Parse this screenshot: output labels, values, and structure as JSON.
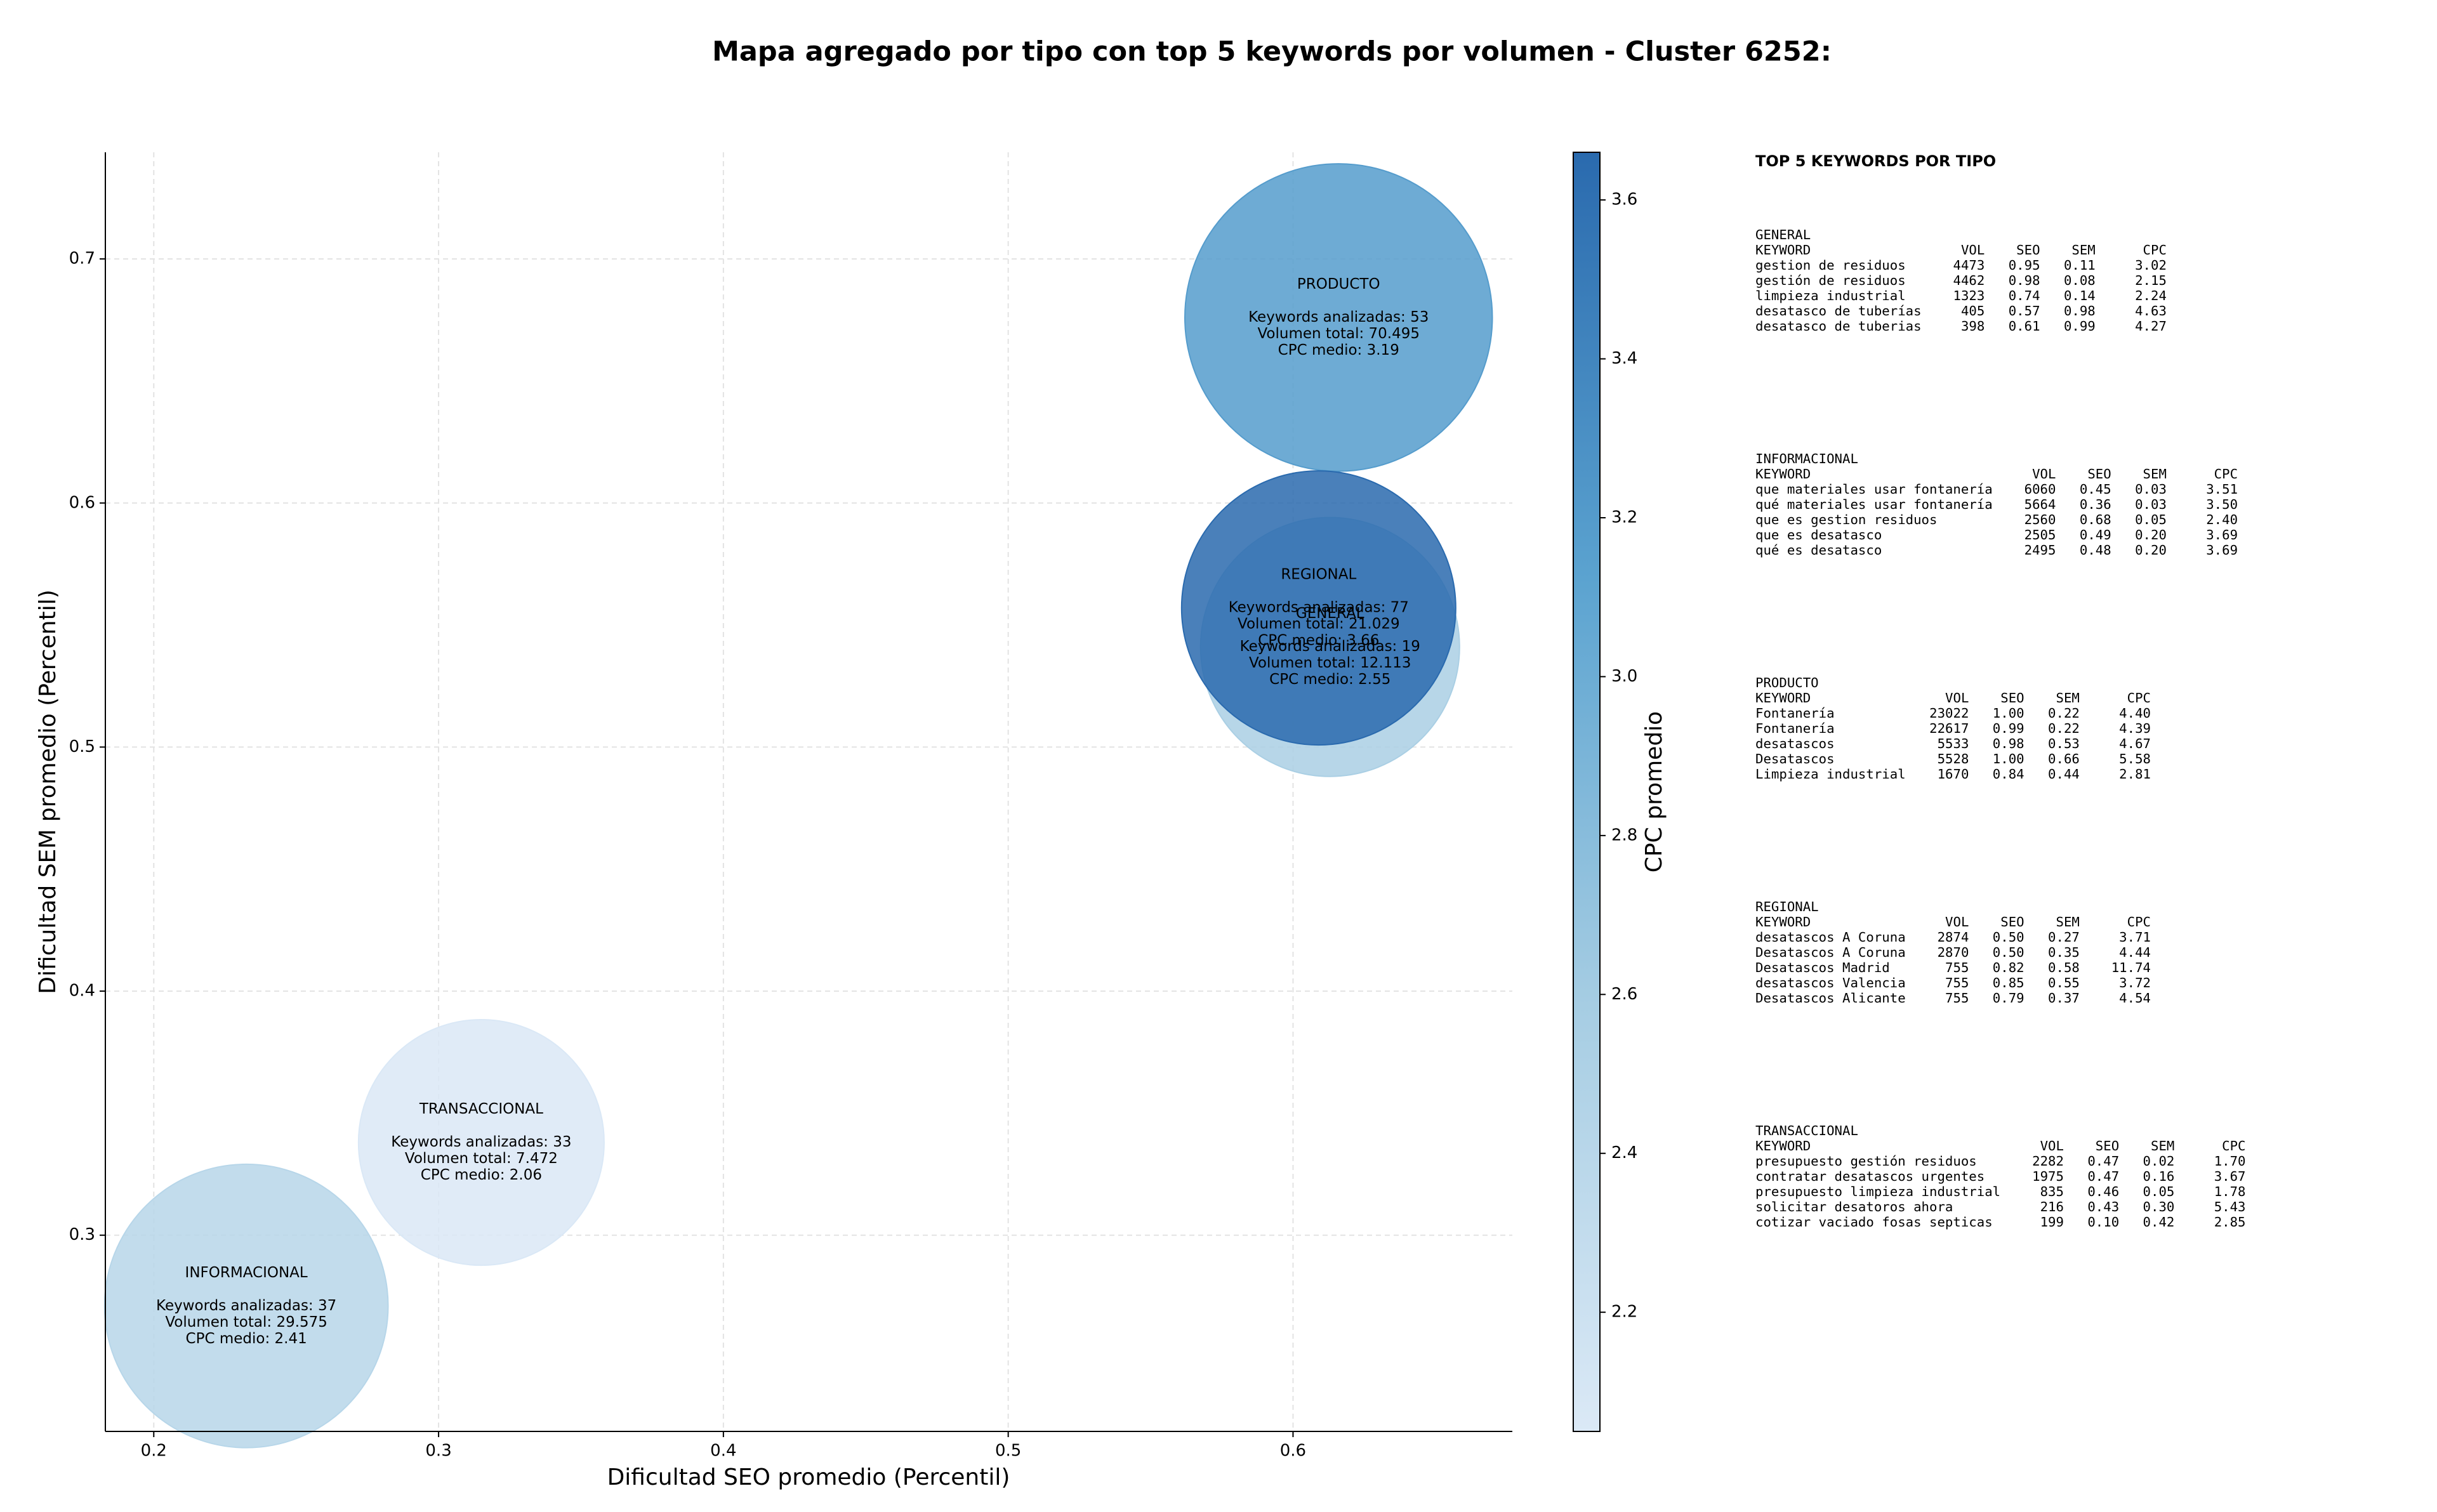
{
  "chart_data": {
    "type": "bubble",
    "title": "Mapa agregado por tipo con top 5 keywords por volumen - Cluster 6252:",
    "x_label": "Dificultad SEO promedio (Percentil)",
    "y_label": "Dificultad SEM promedio (Percentil)",
    "xlim": [
      0.183,
      0.677
    ],
    "ylim": [
      0.2196,
      0.7437
    ],
    "xticks": [
      0.2,
      0.3,
      0.4,
      0.5,
      0.6
    ],
    "yticks": [
      0.3,
      0.4,
      0.5,
      0.6,
      0.7
    ],
    "grid": true,
    "points": [
      {
        "name": "GENERAL",
        "x": 0.613,
        "y": 0.541,
        "volume": 12113,
        "cpc": 2.55,
        "annotation": [
          "Keywords analizadas: 19",
          "Volumen total: 12.113",
          "CPC medio: 2.55"
        ]
      },
      {
        "name": "INFORMACIONAL",
        "x": 0.2325,
        "y": 0.271,
        "volume": 29575,
        "cpc": 2.41,
        "annotation": [
          "Keywords analizadas: 37",
          "Volumen total: 29.575",
          "CPC medio: 2.41"
        ]
      },
      {
        "name": "PRODUCTO",
        "x": 0.616,
        "y": 0.676,
        "volume": 70495,
        "cpc": 3.19,
        "annotation": [
          "Keywords analizadas: 53",
          "Volumen total: 70.495",
          "CPC medio: 3.19"
        ]
      },
      {
        "name": "REGIONAL",
        "x": 0.609,
        "y": 0.557,
        "volume": 21029,
        "cpc": 3.66,
        "annotation": [
          "Keywords analizadas: 77",
          "Volumen total: 21.029",
          "CPC medio: 3.66"
        ]
      },
      {
        "name": "TRANSACCIONAL",
        "x": 0.315,
        "y": 0.338,
        "volume": 7472,
        "cpc": 2.06,
        "annotation": [
          "Keywords analizadas: 33",
          "Volumen total: 7.472",
          "CPC medio: 2.06"
        ]
      }
    ],
    "colorbar": {
      "label": "CPC promedio",
      "lim": [
        2.05,
        3.66
      ],
      "ticks": [
        2.2,
        2.4,
        2.6,
        2.8,
        {
          "value": 3,
          "label": "3.0"
        },
        3.2,
        3.4,
        3.6
      ],
      "colors": [
        "#dbe9f6",
        "#a6cde3",
        "#5ba3d0",
        "#2a6aae"
      ]
    }
  },
  "keyword_panel": {
    "title": "TOP 5 KEYWORDS POR TIPO",
    "columns": [
      "KEYWORD",
      "VOL",
      "SEO",
      "SEM",
      "CPC"
    ],
    "sections": [
      {
        "name": "GENERAL",
        "rows": [
          [
            "gestion de residuos",
            "4473",
            "0.95",
            "0.11",
            "3.02"
          ],
          [
            "gestión de residuos",
            "4462",
            "0.98",
            "0.08",
            "2.15"
          ],
          [
            "limpieza industrial",
            "1323",
            "0.74",
            "0.14",
            "2.24"
          ],
          [
            "desatasco de tuberías",
            "405",
            "0.57",
            "0.98",
            "4.63"
          ],
          [
            "desatasco de tuberias",
            "398",
            "0.61",
            "0.99",
            "4.27"
          ]
        ]
      },
      {
        "name": "INFORMACIONAL",
        "rows": [
          [
            "que materiales usar fontanería",
            "6060",
            "0.45",
            "0.03",
            "3.51"
          ],
          [
            "qué materiales usar fontanería",
            "5664",
            "0.36",
            "0.03",
            "3.50"
          ],
          [
            "que es gestion residuos",
            "2560",
            "0.68",
            "0.05",
            "2.40"
          ],
          [
            "que es desatasco",
            "2505",
            "0.49",
            "0.20",
            "3.69"
          ],
          [
            "qué es desatasco",
            "2495",
            "0.48",
            "0.20",
            "3.69"
          ]
        ]
      },
      {
        "name": "PRODUCTO",
        "rows": [
          [
            "Fontanería",
            "23022",
            "1.00",
            "0.22",
            "4.40"
          ],
          [
            "Fontanería",
            "22617",
            "0.99",
            "0.22",
            "4.39"
          ],
          [
            "desatascos",
            "5533",
            "0.98",
            "0.53",
            "4.67"
          ],
          [
            "Desatascos",
            "5528",
            "1.00",
            "0.66",
            "5.58"
          ],
          [
            "Limpieza industrial",
            "1670",
            "0.84",
            "0.44",
            "2.81"
          ]
        ]
      },
      {
        "name": "REGIONAL",
        "rows": [
          [
            "desatascos A Coruna",
            "2874",
            "0.50",
            "0.27",
            "3.71"
          ],
          [
            "Desatascos A Coruna",
            "2870",
            "0.50",
            "0.35",
            "4.44"
          ],
          [
            "Desatascos Madrid",
            "755",
            "0.82",
            "0.58",
            "11.74"
          ],
          [
            "desatascos Valencia",
            "755",
            "0.85",
            "0.55",
            "3.72"
          ],
          [
            "Desatascos Alicante",
            "755",
            "0.79",
            "0.37",
            "4.54"
          ]
        ]
      },
      {
        "name": "TRANSACCIONAL",
        "rows": [
          [
            "presupuesto gestión residuos",
            "2282",
            "0.47",
            "0.02",
            "1.70"
          ],
          [
            "contratar desatascos urgentes",
            "1975",
            "0.47",
            "0.16",
            "3.67"
          ],
          [
            "presupuesto limpieza industrial",
            "835",
            "0.46",
            "0.05",
            "1.78"
          ],
          [
            "solicitar desatoros ahora",
            "216",
            "0.43",
            "0.30",
            "5.43"
          ],
          [
            "cotizar vaciado fosas septicas",
            "199",
            "0.10",
            "0.42",
            "2.85"
          ]
        ]
      }
    ]
  }
}
